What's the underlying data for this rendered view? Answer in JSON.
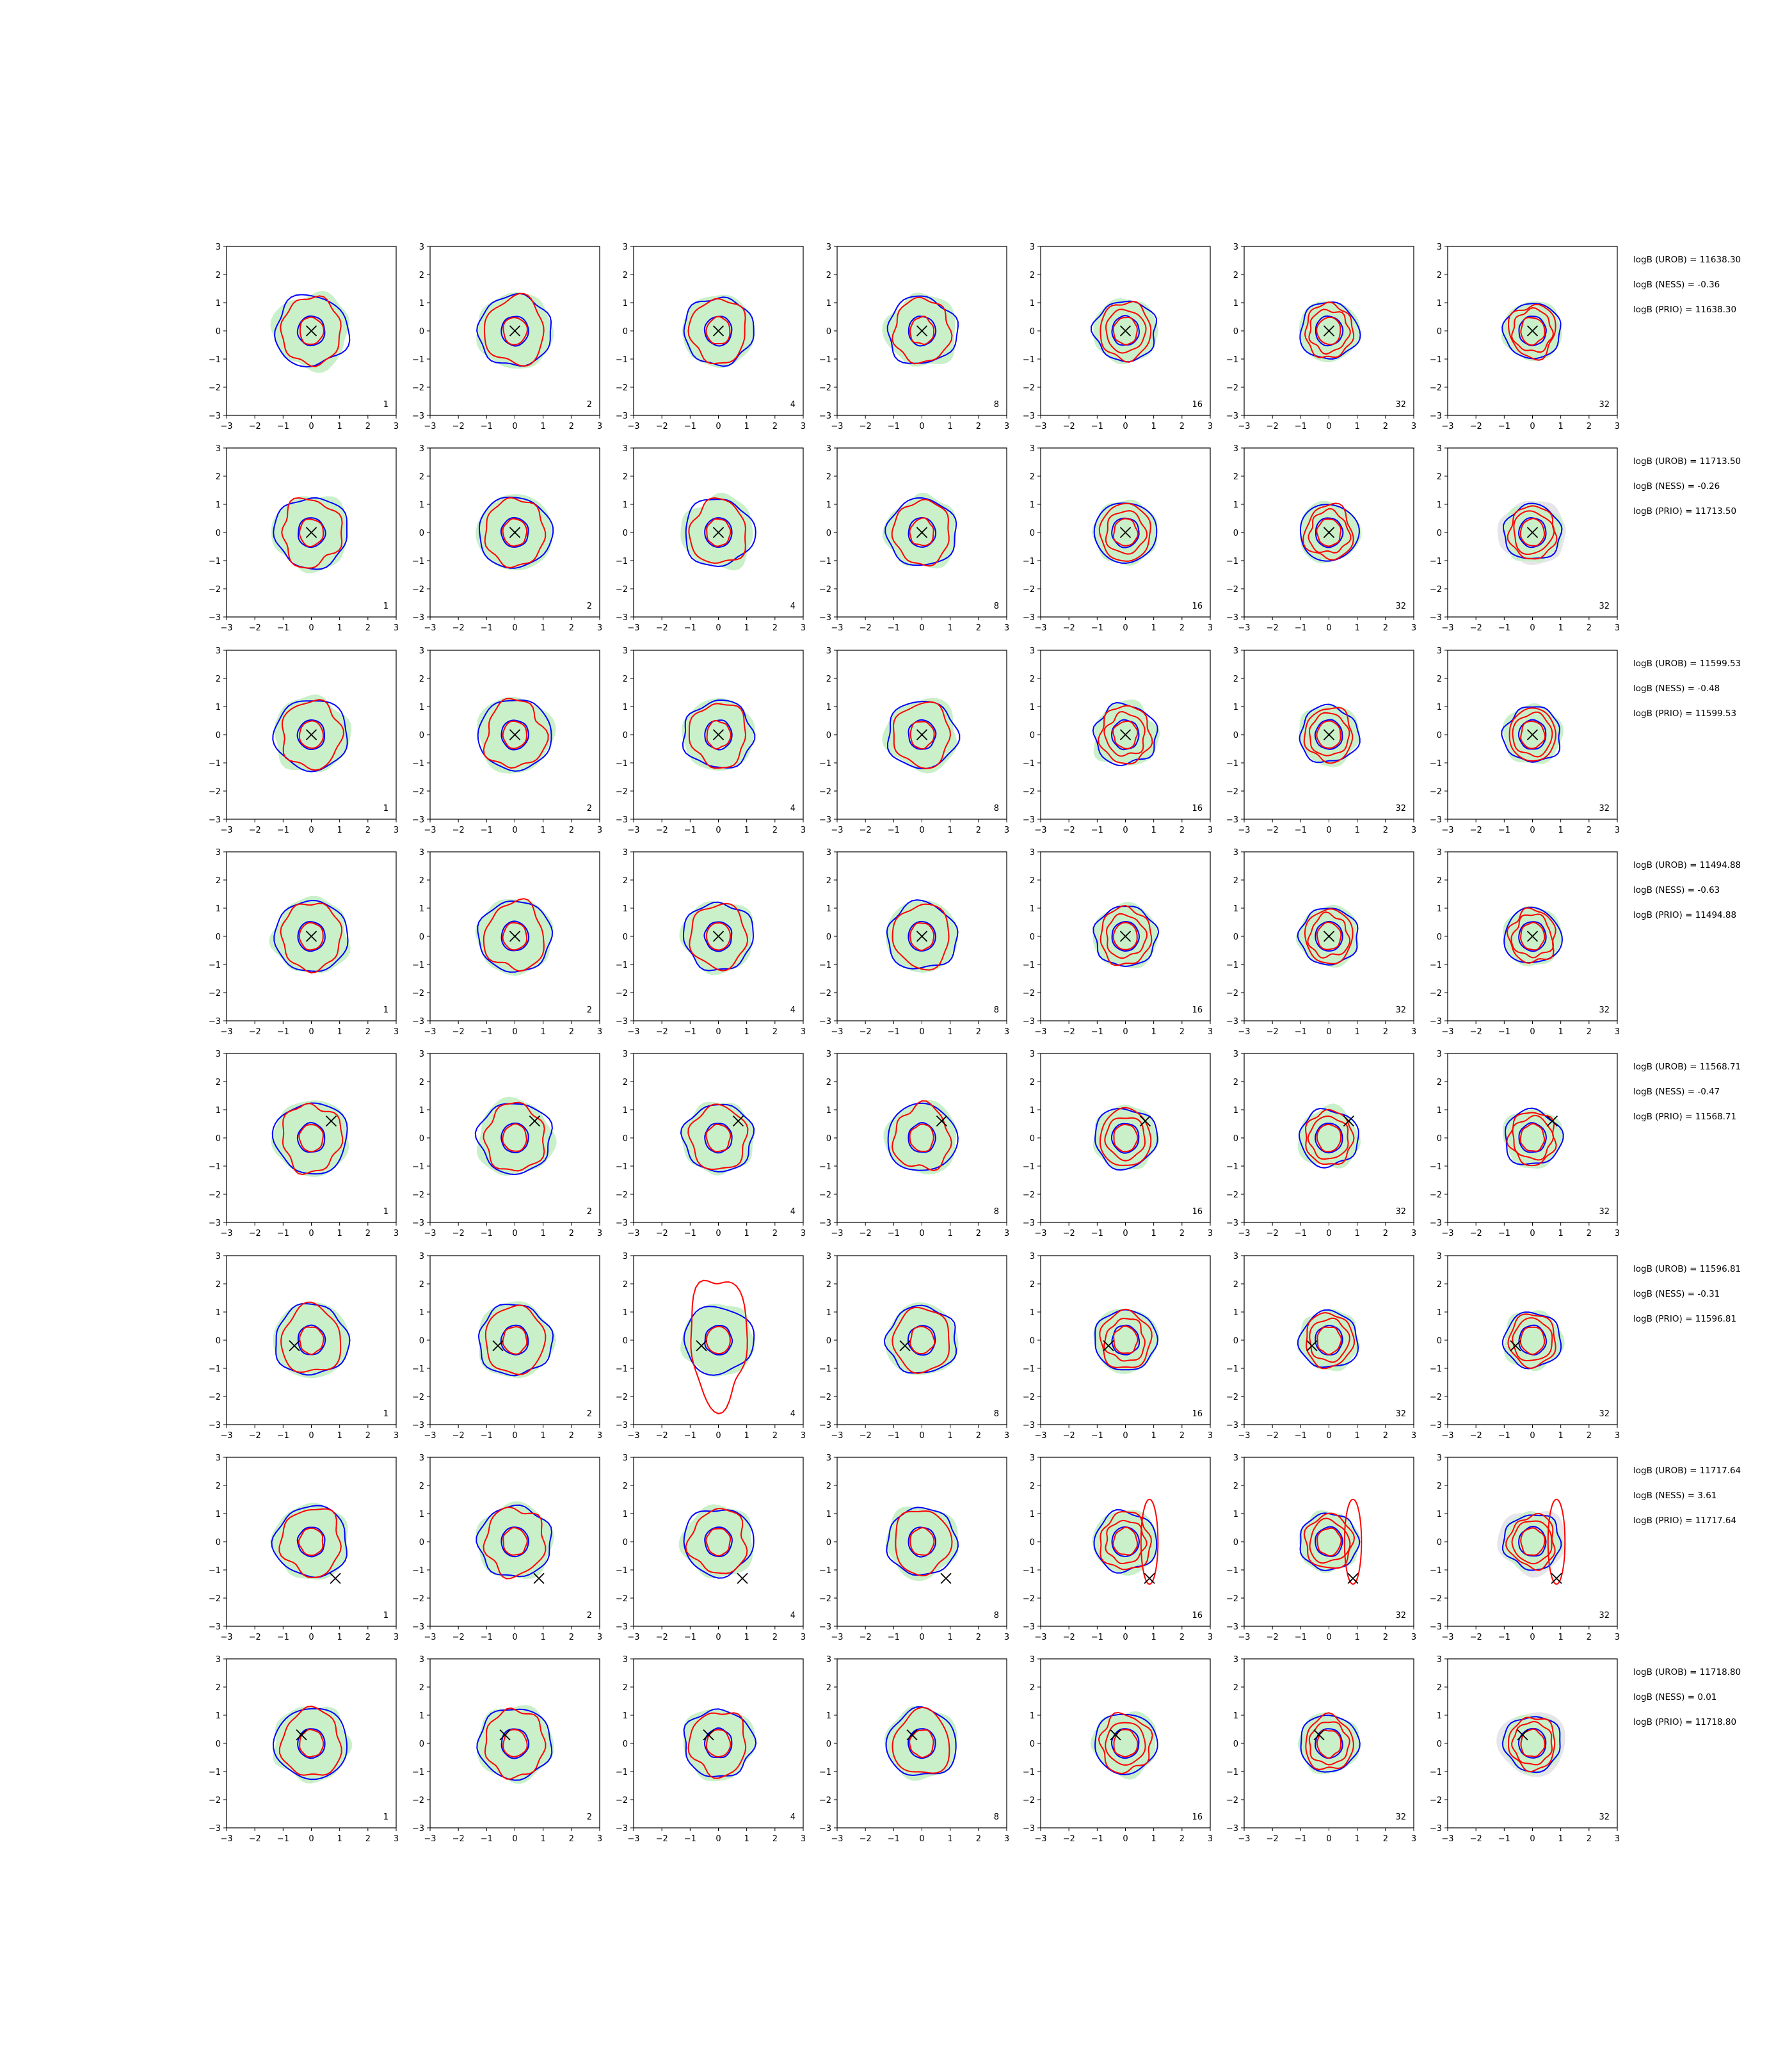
{
  "chart_data": {
    "type": "contour",
    "grid": {
      "rows": 8,
      "cols": 7
    },
    "xlim": [
      -3,
      3
    ],
    "ylim": [
      -3,
      3
    ],
    "x_ticks": [
      -3,
      -2,
      -1,
      0,
      1,
      2,
      3
    ],
    "y_ticks": [
      -3,
      -2,
      -1,
      0,
      1,
      2,
      3
    ],
    "tick_labels": [
      "−3",
      "−2",
      "−1",
      "0",
      "1",
      "2",
      "3"
    ],
    "column_labels": [
      "1",
      "2",
      "4",
      "8",
      "16",
      "32",
      "32"
    ],
    "colors": {
      "fill": "#c9f0c9",
      "gray_fill": "#e6e6ea",
      "blue": "#0000ff",
      "red": "#ff0000",
      "marker": "#000000"
    },
    "rows": [
      {
        "marker": [
          0,
          0
        ],
        "side_labels": [
          "logB (UROB) = 11638.30",
          "logB (NESS) = -0.36",
          "logB (PRIO) = 11638.30"
        ]
      },
      {
        "marker": [
          0,
          0
        ],
        "side_labels": [
          "logB (UROB) = 11713.50",
          "logB (NESS) = -0.26",
          "logB (PRIO) = 11713.50"
        ]
      },
      {
        "marker": [
          0,
          0
        ],
        "side_labels": [
          "logB (UROB) = 11599.53",
          "logB (NESS) = -0.48",
          "logB (PRIO) = 11599.53"
        ]
      },
      {
        "marker": [
          0,
          0
        ],
        "side_labels": [
          "logB (UROB) = 11494.88",
          "logB (NESS) = -0.63",
          "logB (PRIO) = 11494.88"
        ]
      },
      {
        "marker": [
          0.7,
          0.6
        ],
        "side_labels": [
          "logB (UROB) = 11568.71",
          "logB (NESS) = -0.47",
          "logB (PRIO) = 11568.71"
        ]
      },
      {
        "marker": [
          -0.6,
          -0.2
        ],
        "side_labels": [
          "logB (UROB) = 11596.81",
          "logB (NESS) = -0.31",
          "logB (PRIO) = 11596.81"
        ]
      },
      {
        "marker": [
          0.85,
          -1.3
        ],
        "side_labels": [
          "logB (UROB) = 11717.64",
          "logB (NESS) = 3.61",
          "logB (PRIO) = 11717.64"
        ]
      },
      {
        "marker": [
          -0.35,
          0.3
        ],
        "side_labels": [
          "logB (UROB) = 11718.80",
          "logB (NESS) = 0.01",
          "logB (PRIO) = 11718.80"
        ]
      }
    ]
  }
}
